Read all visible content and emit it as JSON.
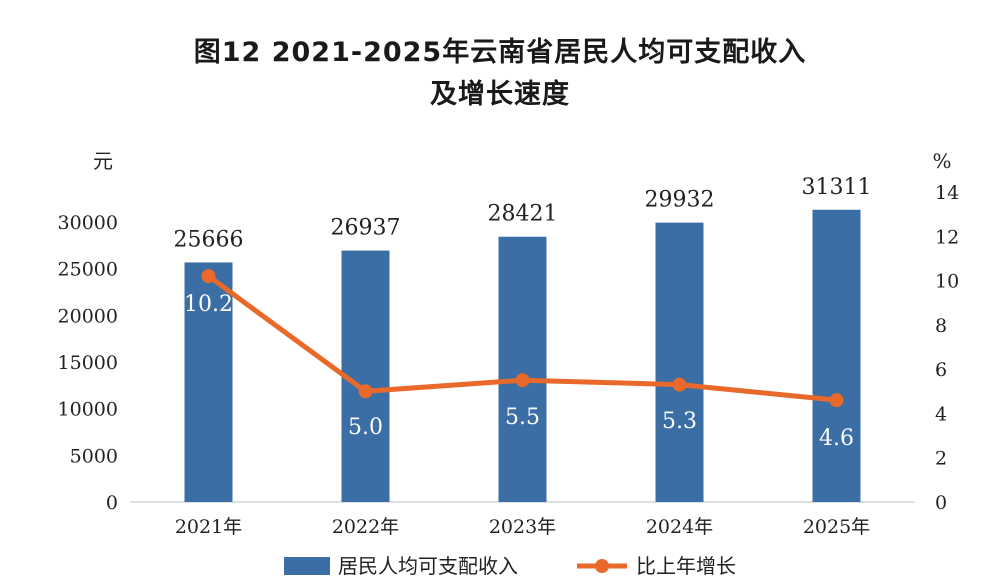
{
  "chart_data": {
    "type": "bar",
    "title_lines": [
      "图12  2021-2025年云南省居民人均可支配收入",
      "及增长速度"
    ],
    "left_unit": "元",
    "right_unit": "%",
    "categories": [
      "2021年",
      "2022年",
      "2023年",
      "2024年",
      "2025年"
    ],
    "series": [
      {
        "name": "居民人均可支配收入",
        "kind": "bar",
        "axis": "left",
        "color": "#3a6ea5",
        "values": [
          25666,
          26937,
          28421,
          29932,
          31311
        ]
      },
      {
        "name": "比上年增长",
        "kind": "line",
        "axis": "right",
        "color": "#e8692a",
        "values": [
          10.2,
          5.0,
          5.5,
          5.3,
          4.6
        ]
      }
    ],
    "bar_labels": [
      "25666",
      "26937",
      "28421",
      "29932",
      "31311"
    ],
    "line_labels": [
      "10.2",
      "5.0",
      "5.5",
      "5.3",
      "4.6"
    ],
    "ylim_left": [
      0,
      30000
    ],
    "yticks_left": [
      "0",
      "5000",
      "10000",
      "15000",
      "20000",
      "25000",
      "30000"
    ],
    "ylim_right": [
      0,
      14
    ],
    "yticks_right": [
      "0",
      "2",
      "4",
      "6",
      "8",
      "10",
      "12",
      "14"
    ],
    "grid": false,
    "legend_position": "bottom"
  }
}
